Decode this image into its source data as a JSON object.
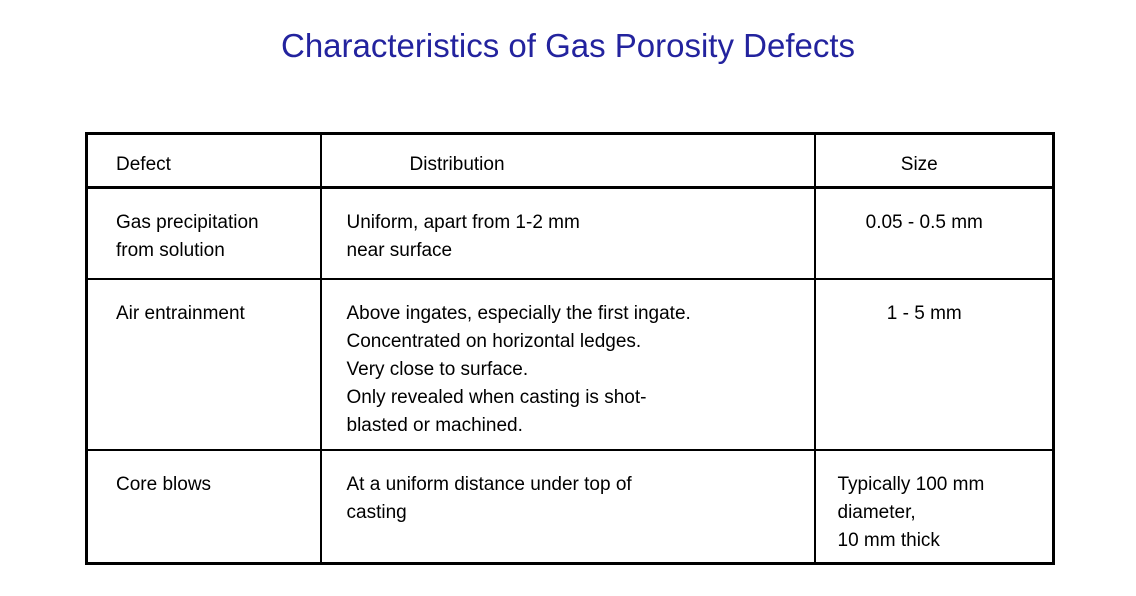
{
  "title": "Characteristics of Gas Porosity Defects",
  "colors": {
    "title_text": "#23239E",
    "body_text": "#000000",
    "table_border": "#000000",
    "background": "#FFFFFF"
  },
  "table": {
    "headers": [
      "Defect",
      "Distribution",
      "Size"
    ],
    "rows": [
      {
        "defect": [
          "Gas precipitation",
          "from solution"
        ],
        "distribution": [
          "Uniform, apart from 1-2 mm",
          "near surface"
        ],
        "size": [
          "0.05 - 0.5 mm"
        ]
      },
      {
        "defect": [
          "Air entrainment"
        ],
        "distribution": [
          "Above ingates, especially the first ingate.",
          "Concentrated on horizontal ledges.",
          "Very close to surface.",
          "Only revealed when casting is shot-",
          "blasted or machined."
        ],
        "size": [
          "1 - 5 mm"
        ]
      },
      {
        "defect": [
          "Core blows"
        ],
        "distribution": [
          "At a uniform distance under top of",
          "casting"
        ],
        "size": [
          "Typically 100 mm",
          "diameter,",
          "10 mm thick"
        ]
      }
    ]
  }
}
